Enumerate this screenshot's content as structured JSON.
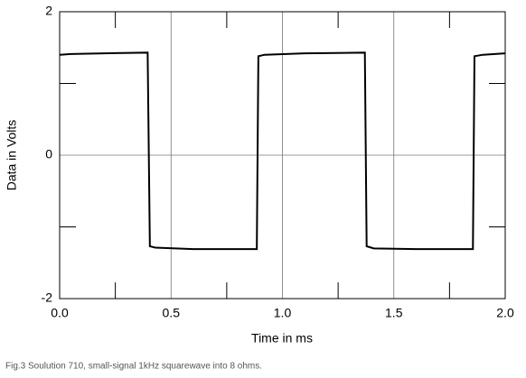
{
  "chart_data": {
    "type": "line",
    "x_label": "Time in ms",
    "y_label": "Data in Volts",
    "caption": "Fig.3 Soulution 710, small-signal 1kHz squarewave into 8 ohms.",
    "xlim": [
      0,
      2
    ],
    "ylim": [
      -2,
      2
    ],
    "xticks": [
      {
        "value": 0,
        "label": "0.0"
      },
      0.5,
      {
        "value": 1,
        "label": "1.0"
      },
      1.5,
      {
        "value": 2,
        "label": "2.0"
      }
    ],
    "yticks": [
      -2,
      0,
      2
    ],
    "x_minor_ticks": [
      0.25,
      0.75,
      1.25,
      1.75
    ],
    "y_minor_ticks": [
      -1,
      1
    ],
    "grid": true,
    "series": [
      {
        "color": "#000000",
        "x": [
          0,
          0.05,
          0.2,
          0.395,
          0.405,
          0.43,
          0.6,
          0.885,
          0.892,
          0.92,
          1.1,
          1.37,
          1.378,
          1.41,
          1.6,
          1.855,
          1.862,
          1.9,
          2.0
        ],
        "values": [
          1.4,
          1.41,
          1.42,
          1.43,
          -1.27,
          -1.29,
          -1.31,
          -1.31,
          1.38,
          1.4,
          1.42,
          1.43,
          -1.27,
          -1.3,
          -1.31,
          -1.31,
          1.38,
          1.4,
          1.42
        ]
      }
    ]
  }
}
